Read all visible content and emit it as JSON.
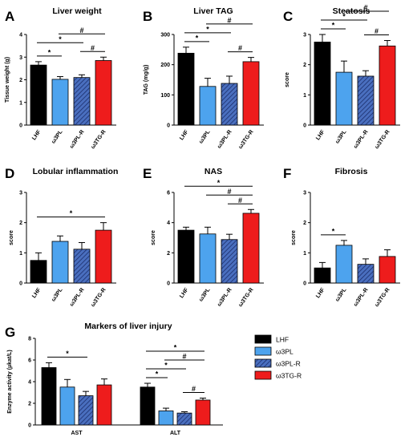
{
  "series_names": [
    "LHF",
    "ω3PL",
    "ω3PL-R",
    "ω3TG-R"
  ],
  "colors": {
    "LHF": "#000000",
    "ω3PL": "#4da3ee",
    "ω3PL-R": "#4a6fbf",
    "ω3TG-R": "#ee1c1c"
  },
  "hatched_series": "ω3PL-R",
  "chart_data": [
    {
      "type": "bar",
      "panel": "A",
      "title": "Liver weight",
      "ylabel": "Tissue weight (g)",
      "ylim": [
        0,
        4
      ],
      "yticks": [
        "0",
        "1",
        "2",
        "3",
        "4"
      ],
      "categories": [
        "LHF",
        "ω3PL",
        "ω3PL-R",
        "ω3TG-R"
      ],
      "values": [
        2.65,
        2.02,
        2.1,
        2.85
      ],
      "errors": [
        0.15,
        0.12,
        0.12,
        0.15
      ],
      "significance": [
        {
          "from": 0,
          "to": 1,
          "label": "*"
        },
        {
          "from": 0,
          "to": 2,
          "label": "*"
        },
        {
          "from": 1,
          "to": 3,
          "label": "#"
        },
        {
          "from": 2,
          "to": 3,
          "label": "#"
        }
      ]
    },
    {
      "type": "bar",
      "panel": "B",
      "title": "Liver TAG",
      "ylabel": "TAG (mg/g)",
      "ylim": [
        0,
        300
      ],
      "yticks": [
        "0",
        "100",
        "200",
        "300"
      ],
      "categories": [
        "LHF",
        "ω3PL",
        "ω3PL-R",
        "ω3TG-R"
      ],
      "values": [
        238,
        128,
        138,
        210
      ],
      "errors": [
        20,
        27,
        24,
        14
      ],
      "significance": [
        {
          "from": 0,
          "to": 1,
          "label": "*"
        },
        {
          "from": 0,
          "to": 2,
          "label": "*"
        },
        {
          "from": 1,
          "to": 3,
          "label": "#"
        },
        {
          "from": 2,
          "to": 3,
          "label": "#"
        }
      ]
    },
    {
      "type": "bar",
      "panel": "C",
      "title": "Steatosis",
      "ylabel": "score",
      "ylim": [
        0,
        3
      ],
      "yticks": [
        "0",
        "1",
        "2",
        "3"
      ],
      "categories": [
        "LHF",
        "ω3PL",
        "ω3PL-R",
        "ω3TG-R"
      ],
      "values": [
        2.75,
        1.75,
        1.62,
        2.62
      ],
      "errors": [
        0.25,
        0.37,
        0.18,
        0.18
      ],
      "significance": [
        {
          "from": 0,
          "to": 1,
          "label": "*"
        },
        {
          "from": 0,
          "to": 2,
          "label": "*"
        },
        {
          "from": 1,
          "to": 3,
          "label": "#"
        },
        {
          "from": 2,
          "to": 3,
          "label": "#"
        }
      ]
    },
    {
      "type": "bar",
      "panel": "D",
      "title": "Lobular inflammation",
      "ylabel": "score",
      "ylim": [
        0,
        3
      ],
      "yticks": [
        "0",
        "1",
        "2",
        "3"
      ],
      "categories": [
        "LHF",
        "ω3PL",
        "ω3PL-R",
        "ω3TG-R"
      ],
      "values": [
        0.75,
        1.38,
        1.12,
        1.75
      ],
      "errors": [
        0.25,
        0.18,
        0.22,
        0.25
      ],
      "significance": [
        {
          "from": 0,
          "to": 3,
          "label": "*"
        }
      ]
    },
    {
      "type": "bar",
      "panel": "E",
      "title": "NAS",
      "ylabel": "score",
      "ylim": [
        0,
        6
      ],
      "yticks": [
        "0",
        "2",
        "4",
        "6"
      ],
      "categories": [
        "LHF",
        "ω3PL",
        "ω3PL-R",
        "ω3TG-R"
      ],
      "values": [
        3.5,
        3.25,
        2.88,
        4.62
      ],
      "errors": [
        0.2,
        0.45,
        0.35,
        0.25
      ],
      "significance": [
        {
          "from": 0,
          "to": 3,
          "label": "*"
        },
        {
          "from": 1,
          "to": 3,
          "label": "#"
        },
        {
          "from": 2,
          "to": 3,
          "label": "#"
        }
      ]
    },
    {
      "type": "bar",
      "panel": "F",
      "title": "Fibrosis",
      "ylabel": "score",
      "ylim": [
        0,
        3
      ],
      "yticks": [
        "0",
        "1",
        "2",
        "3"
      ],
      "categories": [
        "LHF",
        "ω3PL",
        "ω3PL-R",
        "ω3TG-R"
      ],
      "values": [
        0.5,
        1.25,
        0.62,
        0.88
      ],
      "errors": [
        0.18,
        0.16,
        0.18,
        0.22
      ],
      "significance": [
        {
          "from": 0,
          "to": 1,
          "label": "*"
        }
      ]
    },
    {
      "type": "bar",
      "panel": "G",
      "title": "Markers of liver injury",
      "ylabel": "Enzyme activity (µkat/L)",
      "ylim": [
        0,
        8
      ],
      "yticks": [
        "0",
        "2",
        "4",
        "6",
        "8"
      ],
      "categories": [
        "AST",
        "ALT"
      ],
      "series": [
        {
          "name": "LHF",
          "values": [
            5.3,
            3.5
          ],
          "errors": [
            0.45,
            0.35
          ]
        },
        {
          "name": "ω3PL",
          "values": [
            3.5,
            1.3
          ],
          "errors": [
            0.7,
            0.25
          ]
        },
        {
          "name": "ω3PL-R",
          "values": [
            2.7,
            1.1
          ],
          "errors": [
            0.4,
            0.12
          ]
        },
        {
          "name": "ω3TG-R",
          "values": [
            3.7,
            2.3
          ],
          "errors": [
            0.55,
            0.18
          ]
        }
      ],
      "significance": [
        {
          "category": 0,
          "from": 0,
          "to": 2,
          "label": "*"
        },
        {
          "category": 1,
          "from": 0,
          "to": 3,
          "label": "*"
        },
        {
          "category": 1,
          "from": 0,
          "to": 2,
          "label": "*"
        },
        {
          "category": 1,
          "from": 0,
          "to": 1,
          "label": "*"
        },
        {
          "category": 1,
          "from": 1,
          "to": 3,
          "label": "#"
        },
        {
          "category": 1,
          "from": 2,
          "to": 3,
          "label": "#"
        }
      ],
      "legend": {
        "position": "right",
        "entries": [
          "LHF",
          "ω3PL",
          "ω3PL-R",
          "ω3TG-R"
        ]
      }
    }
  ]
}
